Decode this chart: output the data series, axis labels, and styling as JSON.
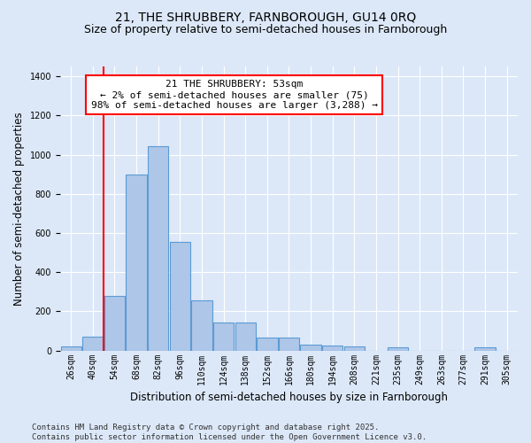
{
  "title": "21, THE SHRUBBERY, FARNBOROUGH, GU14 0RQ",
  "subtitle": "Size of property relative to semi-detached houses in Farnborough",
  "xlabel": "Distribution of semi-detached houses by size in Farnborough",
  "ylabel": "Number of semi-detached properties",
  "footer_line1": "Contains HM Land Registry data © Crown copyright and database right 2025.",
  "footer_line2": "Contains public sector information licensed under the Open Government Licence v3.0.",
  "annotation_title": "21 THE SHRUBBERY: 53sqm",
  "annotation_line2": "← 2% of semi-detached houses are smaller (75)",
  "annotation_line3": "98% of semi-detached houses are larger (3,288) →",
  "bin_labels": [
    "26sqm",
    "40sqm",
    "54sqm",
    "68sqm",
    "82sqm",
    "96sqm",
    "110sqm",
    "124sqm",
    "138sqm",
    "152sqm",
    "166sqm",
    "180sqm",
    "194sqm",
    "208sqm",
    "221sqm",
    "235sqm",
    "249sqm",
    "263sqm",
    "277sqm",
    "291sqm",
    "305sqm"
  ],
  "bar_values": [
    20,
    70,
    280,
    900,
    1045,
    555,
    255,
    145,
    145,
    65,
    65,
    30,
    25,
    20,
    0,
    15,
    0,
    0,
    0,
    15,
    0
  ],
  "bar_color": "#aec6e8",
  "bar_edge_color": "#5b9bd5",
  "vline_color": "red",
  "vline_x_index": 1.5,
  "ylim": [
    0,
    1450
  ],
  "background_color": "#dce8f8",
  "plot_bg_color": "#dce8f8",
  "grid_color": "#ffffff",
  "title_fontsize": 10,
  "subtitle_fontsize": 9,
  "axis_label_fontsize": 8.5,
  "tick_fontsize": 7,
  "footer_fontsize": 6.5,
  "annotation_fontsize": 8
}
